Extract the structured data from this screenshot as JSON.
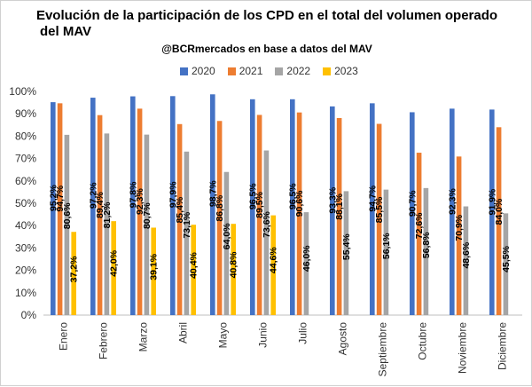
{
  "chart_data": {
    "type": "bar",
    "title_line1": "Evolución de la participación de los CPD en el total del volumen operado",
    "title_line2": "del MAV",
    "subtitle": "@BCRmercados en base a datos del MAV",
    "categories": [
      "Enero",
      "Febrero",
      "Marzo",
      "Abril",
      "Mayo",
      "Junio",
      "Julio",
      "Agosto",
      "Septiembre",
      "Octubre",
      "Noviembre",
      "Diciembre"
    ],
    "series": [
      {
        "name": "2020",
        "color": "#4472C4",
        "values": [
          95.2,
          97.2,
          97.8,
          97.9,
          98.7,
          96.5,
          96.5,
          93.3,
          94.7,
          90.7,
          92.3,
          91.9
        ],
        "labels": [
          "95,2%",
          "97,2%",
          "97,8%",
          "97,9%",
          "98,7%",
          "96,5%",
          "96,5%",
          "93,3%",
          "94,7%",
          "90,7%",
          "92,3%",
          "91,9%"
        ]
      },
      {
        "name": "2021",
        "color": "#ED7D31",
        "values": [
          94.7,
          89.4,
          92.3,
          85.4,
          86.8,
          89.5,
          90.6,
          88.1,
          85.5,
          72.6,
          70.9,
          84.0
        ],
        "labels": [
          "94,7%",
          "89,4%",
          "92,3%",
          "85,4%",
          "86,8%",
          "89,5%",
          "90,6%",
          "88,1%",
          "85,5%",
          "72,6%",
          "70,9%",
          "84,0%"
        ]
      },
      {
        "name": "2022",
        "color": "#A5A5A5",
        "values": [
          80.6,
          81.2,
          80.7,
          73.1,
          64.0,
          73.6,
          46.0,
          55.4,
          56.1,
          56.8,
          48.6,
          45.5
        ],
        "labels": [
          "80,6%",
          "81,2%",
          "80,7%",
          "73,1%",
          "64,0%",
          "73,6%",
          "46,0%",
          "55,4%",
          "56,1%",
          "56,8%",
          "48,6%",
          "45,5%"
        ]
      },
      {
        "name": "2023",
        "color": "#FFC000",
        "values": [
          37.2,
          42.0,
          39.1,
          40.4,
          40.8,
          44.6,
          null,
          null,
          null,
          null,
          null,
          null
        ],
        "labels": [
          "37,2%",
          "42,0%",
          "39,1%",
          "40,4%",
          "40,8%",
          "44,6%",
          null,
          null,
          null,
          null,
          null,
          null
        ]
      }
    ],
    "ylim": [
      0,
      100
    ],
    "y_ticks": [
      "0%",
      "10%",
      "20%",
      "30%",
      "40%",
      "50%",
      "60%",
      "70%",
      "80%",
      "90%",
      "100%"
    ],
    "grid": "none",
    "legend_position": "top-center"
  }
}
